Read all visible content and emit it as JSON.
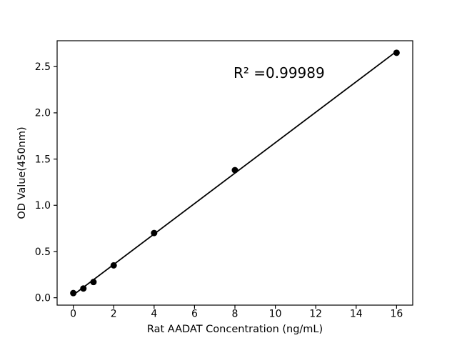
{
  "chart_data": {
    "type": "scatter",
    "xlabel": "Rat AADAT Concentration (ng/mL)",
    "ylabel": "OD Value(450nm)",
    "annotation": "R² =0.99989",
    "x": [
      0,
      0.5,
      1,
      2,
      4,
      8,
      16
    ],
    "y": [
      0.05,
      0.1,
      0.17,
      0.35,
      0.7,
      1.38,
      2.65
    ],
    "fit_line": {
      "type": "linear",
      "r_squared": 0.99989
    },
    "x_ticks": [
      0,
      2,
      4,
      6,
      8,
      10,
      12,
      14,
      16
    ],
    "x_tick_labels": [
      "0",
      "2",
      "4",
      "6",
      "8",
      "10",
      "12",
      "14",
      "16"
    ],
    "y_ticks": [
      0.0,
      0.5,
      1.0,
      1.5,
      2.0,
      2.5
    ],
    "y_tick_labels": [
      "0.0",
      "0.5",
      "1.0",
      "1.5",
      "2.0",
      "2.5"
    ],
    "xlim": [
      -0.8,
      16.8
    ],
    "ylim": [
      -0.08,
      2.78
    ],
    "grid": false,
    "legend": null,
    "marker_color": "#000000",
    "line_color": "#000000",
    "axis_color": "#000000",
    "background": "#ffffff"
  }
}
